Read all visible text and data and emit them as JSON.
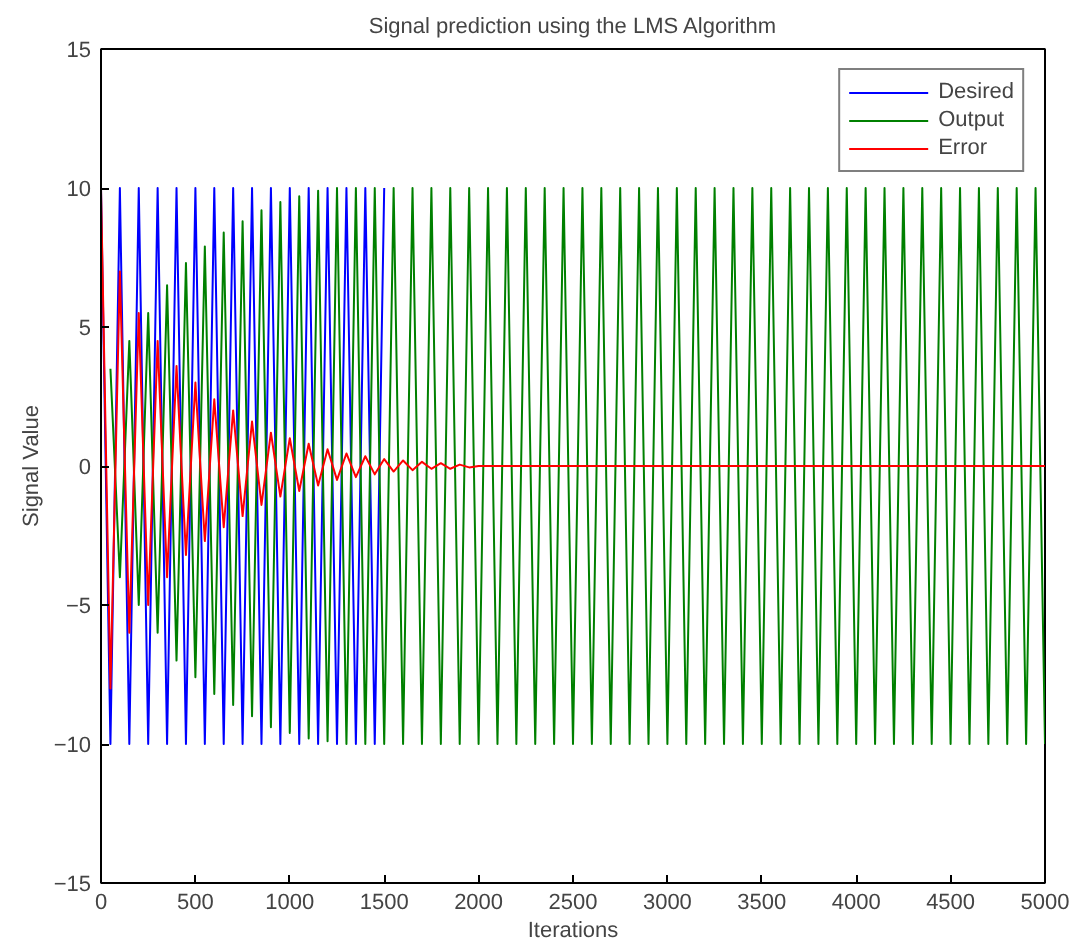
{
  "chart_data": {
    "type": "line",
    "title": "Signal prediction using the LMS Algorithm",
    "xlabel": "Iterations",
    "ylabel": "Signal Value",
    "x": [
      0,
      50,
      100,
      150,
      200,
      250,
      300,
      350,
      400,
      450,
      500,
      550,
      600,
      650,
      700,
      750,
      800,
      850,
      900,
      950,
      1000,
      1050,
      1100,
      1150,
      1200,
      1250,
      1300,
      1350,
      1400,
      1450,
      1500,
      1550,
      1600,
      1650,
      1700,
      1750,
      1800,
      1850,
      1900,
      1950,
      2000,
      2050,
      2100,
      2150,
      2200,
      2250,
      2300,
      2350,
      2400,
      2450,
      2500,
      2550,
      2600,
      2650,
      2700,
      2750,
      2800,
      2850,
      2900,
      2950,
      3000,
      3050,
      3100,
      3150,
      3200,
      3250,
      3300,
      3350,
      3400,
      3450,
      3500,
      3550,
      3600,
      3650,
      3700,
      3750,
      3800,
      3850,
      3900,
      3950,
      4000,
      4050,
      4100,
      4150,
      4200,
      4250,
      4300,
      4350,
      4400,
      4450,
      4500,
      4550,
      4600,
      4650,
      4700,
      4750,
      4800,
      4850,
      4900,
      4950,
      5000
    ],
    "series": [
      {
        "name": "Desired",
        "color": "#0000ff",
        "values": [
          10,
          -10,
          10,
          -10,
          10,
          -10,
          10,
          -10,
          10,
          -10,
          10,
          -10,
          10,
          -10,
          10,
          -10,
          10,
          -10,
          10,
          -10,
          10,
          -10,
          10,
          -10,
          10,
          -10,
          10,
          -10,
          10,
          -10,
          10,
          null,
          null,
          null,
          null,
          null,
          null,
          null,
          null,
          null,
          null,
          null,
          null,
          null,
          null,
          null,
          null,
          null,
          null,
          null,
          null,
          null,
          null,
          null,
          null,
          null,
          null,
          null,
          null,
          null,
          null,
          null,
          null,
          null,
          null,
          null,
          null,
          null,
          null,
          null,
          null,
          null,
          null,
          null,
          null,
          null,
          null,
          null,
          null,
          null,
          null,
          null,
          null,
          null,
          null,
          null,
          null,
          null,
          null,
          null,
          null,
          null,
          null,
          null,
          null,
          null,
          null,
          null,
          null,
          null,
          null
        ]
      },
      {
        "name": "Output",
        "color": "#008000",
        "values": [
          null,
          3.5,
          -4,
          4.5,
          -5,
          5.5,
          -6,
          6.5,
          -7,
          7.3,
          -7.6,
          7.9,
          -8.2,
          8.4,
          -8.6,
          8.8,
          -9,
          9.2,
          -9.4,
          9.5,
          -9.6,
          9.7,
          -9.8,
          9.9,
          -9.9,
          10,
          -10,
          10,
          -10,
          10,
          -10,
          10,
          -10,
          10,
          -10,
          10,
          -10,
          10,
          -10,
          10,
          -10,
          10,
          -10,
          10,
          -10,
          10,
          -10,
          10,
          -10,
          10,
          -10,
          10,
          -10,
          10,
          -10,
          10,
          -10,
          10,
          -10,
          10,
          -10,
          10,
          -10,
          10,
          -10,
          10,
          -10,
          10,
          -10,
          10,
          -10,
          10,
          -10,
          10,
          -10,
          10,
          -10,
          10,
          -10,
          10,
          -10,
          10,
          -10,
          10,
          -10,
          10,
          -10,
          10,
          -10,
          10,
          -10,
          10,
          -10,
          10,
          -10,
          10,
          -10,
          10,
          -10,
          10,
          -10
        ]
      },
      {
        "name": "Error",
        "color": "#ff0000",
        "values": [
          10,
          -8,
          7,
          -6,
          5.5,
          -5,
          4.5,
          -4,
          3.6,
          -3.2,
          3,
          -2.7,
          2.4,
          -2.2,
          2,
          -1.8,
          1.6,
          -1.4,
          1.2,
          -1.1,
          1,
          -0.9,
          0.8,
          -0.7,
          0.6,
          -0.5,
          0.45,
          -0.4,
          0.35,
          -0.3,
          0.25,
          -0.2,
          0.2,
          -0.15,
          0.15,
          -0.1,
          0.1,
          -0.1,
          0.05,
          -0.05,
          0,
          0,
          0,
          0,
          0,
          0,
          0,
          0,
          0,
          0,
          0,
          0,
          0,
          0,
          0,
          0,
          0,
          0,
          0,
          0,
          0,
          0,
          0,
          0,
          0,
          0,
          0,
          0,
          0,
          0,
          0,
          0,
          0,
          0,
          0,
          0,
          0,
          0,
          0,
          0,
          0,
          0,
          0,
          0,
          0,
          0,
          0,
          0,
          0,
          0,
          0,
          0,
          0,
          0,
          0,
          0,
          0,
          0,
          0,
          0,
          0
        ]
      }
    ],
    "xlim": [
      0,
      5000
    ],
    "xticks": [
      0,
      500,
      1000,
      1500,
      2000,
      2500,
      3000,
      3500,
      4000,
      4500,
      5000
    ],
    "ylim": [
      -15,
      15
    ],
    "yticks": [
      -15,
      -10,
      -5,
      0,
      5,
      10,
      15
    ],
    "legend": "top right",
    "grid": false,
    "marker": "none",
    "line_style": "solid"
  }
}
